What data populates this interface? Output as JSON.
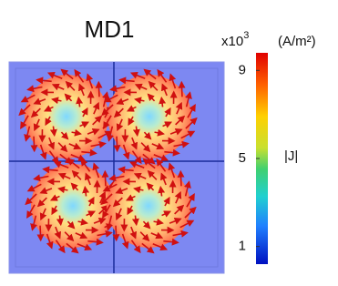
{
  "title": "MD1",
  "colorbar": {
    "multiplier": {
      "base": "x10",
      "exponent": "3"
    },
    "unit": "(A/m²)",
    "label": "|J|",
    "range": [
      0.2,
      9.8
    ],
    "ticks": [
      9,
      5,
      1
    ]
  }
}
